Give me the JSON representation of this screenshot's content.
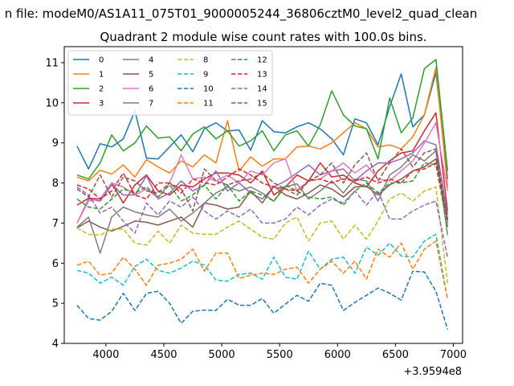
{
  "figure": {
    "suptitle": "n file: modeM0/AS1A11_075T01_9000005244_36806cztM0_level2_quad_clean",
    "title": "Quadrant 2 module wise count rates with 100.0s bins.",
    "x_offset_label": "+3.9594e8"
  },
  "chart_data": {
    "type": "line",
    "title": "Quadrant 2 module wise count rates with 100.0s bins.",
    "xlabel": "",
    "ylabel": "",
    "x_offset": 395940000,
    "xlim": [
      3640,
      7080
    ],
    "ylim": [
      4,
      11.4
    ],
    "xticks": [
      4000,
      4500,
      5000,
      5500,
      6000,
      6500,
      7000
    ],
    "yticks": [
      4,
      5,
      6,
      7,
      8,
      9,
      10,
      11
    ],
    "grid": false,
    "legend": {
      "placement": "top-left",
      "columns": 4
    },
    "x": [
      3750,
      3850,
      3950,
      4050,
      4150,
      4250,
      4350,
      4450,
      4550,
      4650,
      4750,
      4850,
      4950,
      5050,
      5150,
      5250,
      5350,
      5450,
      5550,
      5650,
      5750,
      5850,
      5950,
      6050,
      6150,
      6250,
      6350,
      6450,
      6550,
      6650,
      6750,
      6850,
      6950
    ],
    "series": [
      {
        "name": "0",
        "color": "#1f77b4",
        "dash": "solid",
        "values": [
          8.92,
          8.35,
          8.98,
          8.9,
          9.1,
          9.8,
          8.62,
          8.6,
          8.9,
          9.2,
          8.78,
          9.35,
          9.5,
          9.3,
          9.32,
          8.82,
          9.55,
          9.28,
          9.25,
          9.4,
          9.5,
          9.35,
          9.1,
          8.7,
          9.6,
          9.5,
          8.95,
          9.9,
          10.72,
          9.4,
          9.7,
          10.75,
          8.1
        ]
      },
      {
        "name": "1",
        "color": "#ff7f0e",
        "dash": "solid",
        "values": [
          8.15,
          8.05,
          8.32,
          8.22,
          8.45,
          8.15,
          8.58,
          8.4,
          8.25,
          8.55,
          8.4,
          8.7,
          8.5,
          9.55,
          8.3,
          8.65,
          8.42,
          8.6,
          8.6,
          8.9,
          8.92,
          8.85,
          9.0,
          9.25,
          9.5,
          9.35,
          8.9,
          8.95,
          8.85,
          9.15,
          9.7,
          10.88,
          7.9
        ]
      },
      {
        "name": "2",
        "color": "#2ca02c",
        "dash": "solid",
        "values": [
          8.2,
          8.1,
          8.5,
          9.2,
          8.8,
          9.0,
          9.42,
          9.12,
          9.15,
          8.8,
          9.22,
          9.4,
          9.1,
          9.3,
          8.92,
          9.05,
          9.3,
          8.8,
          9.2,
          9.3,
          8.92,
          9.45,
          10.3,
          9.7,
          9.42,
          9.35,
          8.6,
          10.12,
          9.25,
          9.62,
          10.85,
          11.08,
          8.3
        ]
      },
      {
        "name": "3",
        "color": "#d62728",
        "dash": "solid",
        "values": [
          7.45,
          7.62,
          7.6,
          8.0,
          7.5,
          7.95,
          8.2,
          7.8,
          7.7,
          7.95,
          7.9,
          8.1,
          8.25,
          8.25,
          8.2,
          8.0,
          8.3,
          7.7,
          7.9,
          8.2,
          8.05,
          8.5,
          8.15,
          8.2,
          8.0,
          7.9,
          8.3,
          8.55,
          8.75,
          8.8,
          9.3,
          9.75,
          7.3
        ]
      },
      {
        "name": "4",
        "color": "#9467bd",
        "dash": "solid",
        "values": [
          7.0,
          7.6,
          7.55,
          7.95,
          7.7,
          7.7,
          8.18,
          7.6,
          7.75,
          8.05,
          7.8,
          7.95,
          8.3,
          7.8,
          8.0,
          7.75,
          7.6,
          7.9,
          8.05,
          8.25,
          8.45,
          8.2,
          8.3,
          8.35,
          8.05,
          8.3,
          8.5,
          8.5,
          8.6,
          8.75,
          9.05,
          8.95,
          7.2
        ]
      },
      {
        "name": "5",
        "color": "#8c564b",
        "dash": "solid",
        "values": [
          6.88,
          7.05,
          6.9,
          6.8,
          6.92,
          7.05,
          7.02,
          6.95,
          7.05,
          7.15,
          6.9,
          7.5,
          7.45,
          7.35,
          7.4,
          7.8,
          7.5,
          7.92,
          7.7,
          7.6,
          7.75,
          7.95,
          7.85,
          7.65,
          7.9,
          7.92,
          7.7,
          7.95,
          8.1,
          8.3,
          8.4,
          8.6,
          7.05
        ]
      },
      {
        "name": "6",
        "color": "#e377c2",
        "dash": "solid",
        "values": [
          7.0,
          7.55,
          7.6,
          8.0,
          7.9,
          7.7,
          7.85,
          7.62,
          8.0,
          8.7,
          8.1,
          8.15,
          8.05,
          8.2,
          8.0,
          8.3,
          8.2,
          8.5,
          8.6,
          7.8,
          8.05,
          8.1,
          8.3,
          8.5,
          8.25,
          8.45,
          8.1,
          8.05,
          8.3,
          8.55,
          9.0,
          9.5,
          7.8
        ]
      },
      {
        "name": "7",
        "color": "#7f7f7f",
        "dash": "solid",
        "values": [
          6.9,
          7.15,
          6.25,
          7.15,
          7.4,
          7.28,
          7.2,
          7.15,
          7.35,
          7.05,
          7.25,
          7.5,
          7.75,
          7.9,
          7.8,
          7.9,
          7.75,
          7.55,
          7.9,
          7.98,
          7.6,
          7.8,
          8.05,
          7.75,
          8.1,
          8.05,
          7.55,
          8.2,
          8.4,
          8.7,
          8.55,
          8.8,
          6.7
        ]
      },
      {
        "name": "8",
        "color": "#bcbd22",
        "dash": "dashed",
        "values": [
          6.88,
          6.72,
          6.7,
          6.85,
          6.85,
          6.5,
          6.45,
          6.8,
          6.5,
          6.95,
          6.75,
          6.72,
          6.72,
          6.9,
          7.05,
          6.85,
          6.65,
          6.6,
          7.0,
          7.15,
          6.55,
          7.0,
          7.05,
          6.6,
          6.95,
          6.6,
          7.05,
          7.6,
          7.75,
          7.55,
          7.8,
          7.9,
          5.5
        ]
      },
      {
        "name": "9",
        "color": "#17becf",
        "dash": "dashed",
        "values": [
          5.82,
          5.75,
          5.5,
          5.65,
          5.45,
          5.92,
          6.1,
          5.82,
          5.75,
          5.88,
          6.05,
          5.95,
          5.58,
          5.55,
          5.72,
          5.75,
          5.6,
          6.15,
          5.65,
          5.6,
          6.3,
          5.85,
          6.1,
          6.15,
          5.75,
          6.4,
          6.2,
          6.5,
          6.18,
          6.15,
          6.55,
          6.72,
          5.1
        ]
      },
      {
        "name": "10",
        "color": "#1f77b4",
        "dash": "dashed",
        "values": [
          4.95,
          4.62,
          4.58,
          4.8,
          5.25,
          4.82,
          5.25,
          5.3,
          5.0,
          4.5,
          4.8,
          4.83,
          4.82,
          5.1,
          4.95,
          4.95,
          5.12,
          4.75,
          4.98,
          5.2,
          5.05,
          5.5,
          5.45,
          4.82,
          5.02,
          5.2,
          5.38,
          5.25,
          5.08,
          5.8,
          5.78,
          5.3,
          4.35
        ]
      },
      {
        "name": "11",
        "color": "#ff7f0e",
        "dash": "dashed",
        "values": [
          5.95,
          6.05,
          5.7,
          5.75,
          6.15,
          5.85,
          5.45,
          5.95,
          6.0,
          6.1,
          6.35,
          5.8,
          6.25,
          6.25,
          5.62,
          5.7,
          5.75,
          5.72,
          5.85,
          5.9,
          5.5,
          5.85,
          6.05,
          5.75,
          6.05,
          5.6,
          6.35,
          6.15,
          6.5,
          5.85,
          6.35,
          6.55,
          5.1
        ]
      },
      {
        "name": "12",
        "color": "#2ca02c",
        "dash": "dashed",
        "values": [
          7.6,
          7.4,
          7.35,
          7.6,
          7.85,
          7.75,
          7.9,
          7.65,
          7.95,
          7.55,
          7.7,
          7.95,
          7.6,
          7.95,
          7.55,
          7.8,
          7.7,
          7.55,
          7.95,
          7.8,
          7.65,
          7.6,
          7.65,
          7.45,
          7.8,
          8.0,
          7.75,
          8.0,
          8.0,
          8.05,
          8.5,
          8.45,
          6.9
        ]
      },
      {
        "name": "13",
        "color": "#d62728",
        "dash": "dashed",
        "values": [
          7.95,
          7.85,
          7.6,
          7.8,
          8.25,
          7.7,
          7.6,
          8.0,
          8.0,
          7.75,
          8.1,
          8.0,
          7.95,
          8.15,
          8.35,
          8.2,
          8.0,
          7.9,
          7.85,
          7.8,
          8.05,
          8.1,
          8.0,
          8.1,
          8.05,
          8.15,
          8.0,
          8.1,
          8.0,
          8.3,
          8.35,
          8.5,
          7.1
        ]
      },
      {
        "name": "14",
        "color": "#9467bd",
        "dash": "dashed",
        "values": [
          7.9,
          7.7,
          7.25,
          7.4,
          7.05,
          6.75,
          7.5,
          7.2,
          7.55,
          7.4,
          7.65,
          7.3,
          7.1,
          7.3,
          7.15,
          7.35,
          7.0,
          7.0,
          7.1,
          7.4,
          7.2,
          7.45,
          7.6,
          7.5,
          7.8,
          7.45,
          7.8,
          7.1,
          7.1,
          7.3,
          7.45,
          7.55,
          6.15
        ]
      },
      {
        "name": "15",
        "color": "#8c564b",
        "dash": "dashed",
        "values": [
          7.85,
          7.65,
          8.2,
          7.65,
          8.15,
          8.05,
          7.8,
          7.75,
          8.0,
          7.85,
          7.3,
          8.35,
          8.05,
          7.95,
          8.05,
          8.1,
          8.25,
          8.0,
          7.85,
          7.7,
          8.05,
          8.2,
          8.5,
          8.0,
          8.45,
          8.75,
          8.05,
          8.5,
          8.85,
          8.4,
          8.75,
          8.85,
          7.0
        ]
      }
    ]
  }
}
